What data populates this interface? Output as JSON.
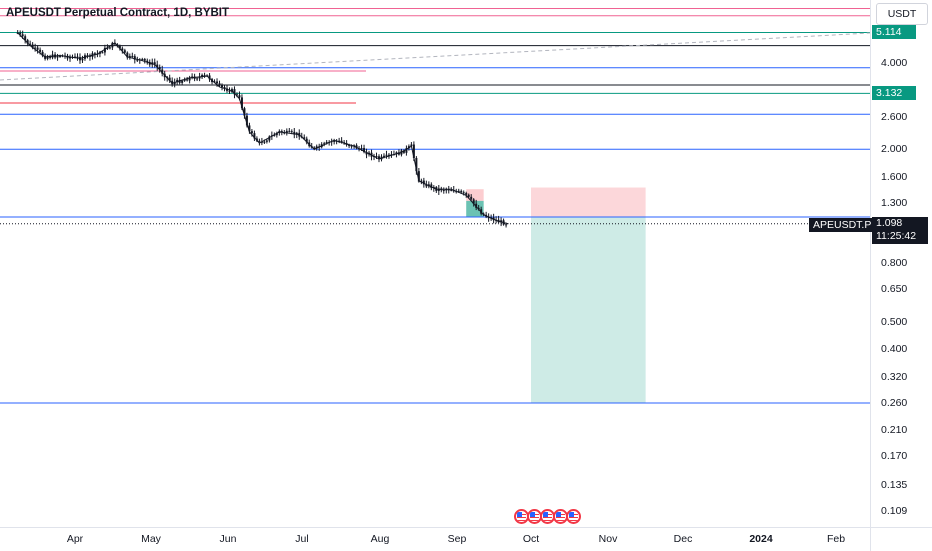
{
  "chart_data": {
    "type": "candlestick",
    "title": "APEUSDT Perpetual Contract, 1D, BYBIT",
    "currency_button": "USDT",
    "y_scale": "log",
    "ylim": [
      0.09,
      6.4
    ],
    "y_ticks": [
      "4.000",
      "2.600",
      "2.000",
      "1.600",
      "1.300",
      "0.800",
      "0.650",
      "0.500",
      "0.400",
      "0.320",
      "0.260",
      "0.210",
      "0.170",
      "0.135",
      "0.109"
    ],
    "x_ticks": [
      "Apr",
      "May",
      "Jun",
      "Jul",
      "Aug",
      "Sep",
      "Oct",
      "Nov",
      "Dec",
      "2024",
      "Feb"
    ],
    "x_ticks_bold": [
      "2024"
    ],
    "price_tags": [
      {
        "label": "5.114",
        "value": 5.114,
        "color": "#089981"
      },
      {
        "label": "3.132",
        "value": 3.132,
        "color": "#089981"
      }
    ],
    "symbol_label": "APEUSDT.P",
    "last_price": "1.098",
    "countdown": "11:25:42",
    "horizontal_lines": [
      {
        "value": 6.2,
        "color": "#f06292",
        "extent": "full"
      },
      {
        "value": 5.85,
        "color": "#f06292",
        "extent": "full"
      },
      {
        "value": 5.114,
        "color": "#089981",
        "extent": "full"
      },
      {
        "value": 4.6,
        "color": "#131722",
        "extent": "full"
      },
      {
        "value": 3.85,
        "color": "#2962ff",
        "extent": "full"
      },
      {
        "value": 3.75,
        "color": "#f06292",
        "extent": "partial"
      },
      {
        "value": 3.35,
        "color": "#131722",
        "extent": "full"
      },
      {
        "value": 3.132,
        "color": "#089981",
        "extent": "full"
      },
      {
        "value": 2.9,
        "color": "#f23645",
        "extent": "partial"
      },
      {
        "value": 2.65,
        "color": "#2962ff",
        "extent": "full"
      },
      {
        "value": 2.0,
        "color": "#2962ff",
        "extent": "full"
      },
      {
        "value": 1.16,
        "color": "#2962ff",
        "extent": "full"
      },
      {
        "value": 0.26,
        "color": "#2962ff",
        "extent": "full"
      }
    ],
    "position_short": {
      "entry": 1.165,
      "stop": 1.47,
      "target": 0.26,
      "from": "2023-10-01",
      "to": "2023-11-16"
    },
    "position_small": {
      "entry": 1.32,
      "stop": 1.45,
      "target": 1.16,
      "from": "2023-09-05",
      "to": "2023-09-12"
    },
    "series": [
      {
        "date": "2023-03-09",
        "close": 5.1
      },
      {
        "date": "2023-03-14",
        "close": 4.6
      },
      {
        "date": "2023-03-20",
        "close": 4.2
      },
      {
        "date": "2023-03-26",
        "close": 4.25
      },
      {
        "date": "2023-04-03",
        "close": 4.15
      },
      {
        "date": "2023-04-10",
        "close": 4.3
      },
      {
        "date": "2023-04-17",
        "close": 4.7
      },
      {
        "date": "2023-04-22",
        "close": 4.2
      },
      {
        "date": "2023-04-27",
        "close": 4.1
      },
      {
        "date": "2023-05-03",
        "close": 3.95
      },
      {
        "date": "2023-05-10",
        "close": 3.4
      },
      {
        "date": "2023-05-17",
        "close": 3.55
      },
      {
        "date": "2023-05-24",
        "close": 3.6
      },
      {
        "date": "2023-05-29",
        "close": 3.3
      },
      {
        "date": "2023-06-03",
        "close": 3.2
      },
      {
        "date": "2023-06-06",
        "close": 3.0
      },
      {
        "date": "2023-06-10",
        "close": 2.3
      },
      {
        "date": "2023-06-14",
        "close": 2.1
      },
      {
        "date": "2023-06-22",
        "close": 2.3
      },
      {
        "date": "2023-06-30",
        "close": 2.25
      },
      {
        "date": "2023-07-06",
        "close": 2.0
      },
      {
        "date": "2023-07-14",
        "close": 2.15
      },
      {
        "date": "2023-07-22",
        "close": 2.05
      },
      {
        "date": "2023-08-01",
        "close": 1.85
      },
      {
        "date": "2023-08-10",
        "close": 1.95
      },
      {
        "date": "2023-08-14",
        "close": 2.05
      },
      {
        "date": "2023-08-17",
        "close": 1.55
      },
      {
        "date": "2023-08-24",
        "close": 1.45
      },
      {
        "date": "2023-08-30",
        "close": 1.45
      },
      {
        "date": "2023-09-05",
        "close": 1.38
      },
      {
        "date": "2023-09-12",
        "close": 1.18
      },
      {
        "date": "2023-09-18",
        "close": 1.12
      },
      {
        "date": "2023-09-22",
        "close": 1.098
      }
    ],
    "date_axis": {
      "start": "2023-03-05",
      "end": "2024-02-14"
    },
    "flags": 5
  }
}
